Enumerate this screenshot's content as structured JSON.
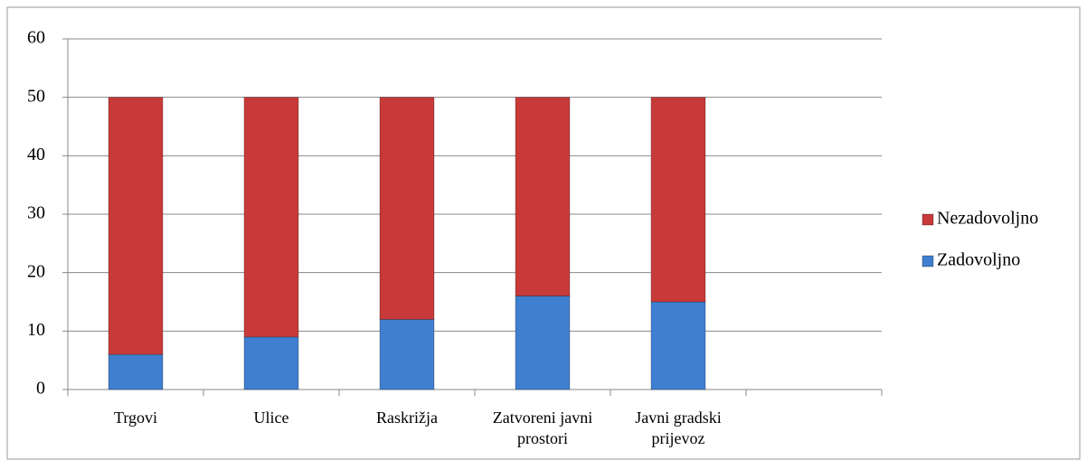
{
  "chart_data": {
    "type": "stacked_bar",
    "categories": [
      "Trgovi",
      "Ulice",
      "Raskrižja",
      "Zatvoreni javni prostori",
      "Javni gradski prijevoz",
      null
    ],
    "series": [
      {
        "name": "Zadovoljno",
        "color": "#3f7fd0",
        "values": [
          6,
          9,
          12,
          16,
          15,
          null
        ]
      },
      {
        "name": "Nezadovoljno",
        "color": "#c83a3a",
        "values": [
          44,
          41,
          38,
          34,
          35,
          null
        ]
      }
    ],
    "ylim": [
      0,
      60
    ],
    "yticks": [
      0,
      10,
      20,
      30,
      40,
      50,
      60
    ],
    "grid": true,
    "legend": "right"
  }
}
